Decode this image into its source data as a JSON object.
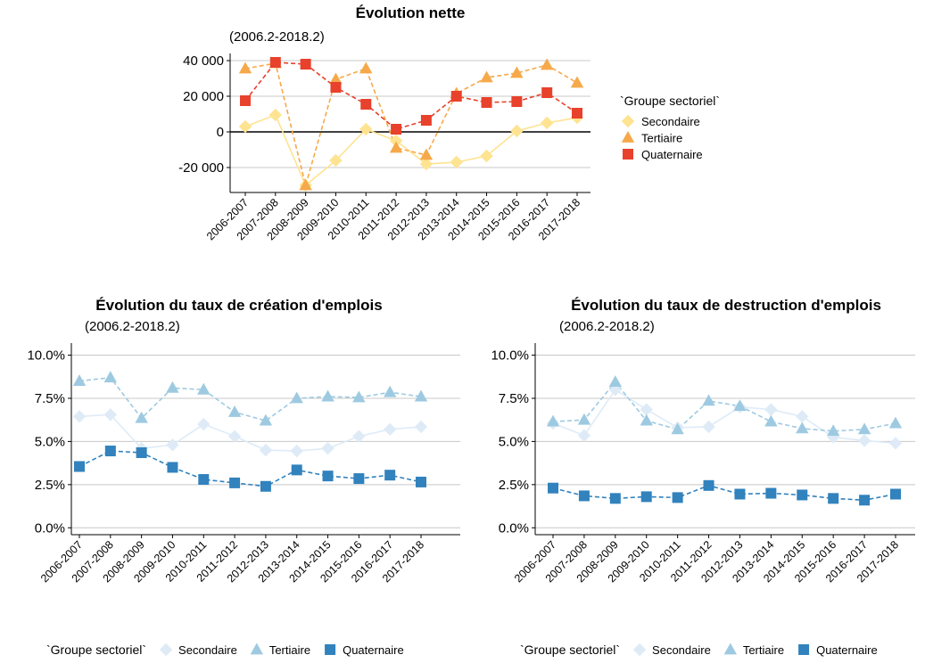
{
  "chart_data": [
    {
      "type": "line",
      "title": "Évolution nette",
      "subtitle": "(2006.2-2018.2)",
      "categories": [
        "2006-2007",
        "2007-2008",
        "2008-2009",
        "2009-2010",
        "2010-2011",
        "2011-2012",
        "2012-2013",
        "2013-2014",
        "2014-2015",
        "2015-2016",
        "2016-2017",
        "2017-2018"
      ],
      "series": [
        {
          "name": "Secondaire",
          "color": "#fee391",
          "marker": "diamond",
          "linestyle": "solid",
          "values": [
            3000,
            9500,
            -30000,
            -16000,
            1500,
            -5000,
            -18000,
            -17000,
            -13500,
            500,
            5000,
            8000
          ]
        },
        {
          "name": "Tertiaire",
          "color": "#f6a94a",
          "marker": "triangle",
          "linestyle": "dashed",
          "values": [
            35500,
            38500,
            -30000,
            29500,
            35500,
            -9000,
            -13000,
            21500,
            30500,
            33000,
            37500,
            27500
          ]
        },
        {
          "name": "Quaternaire",
          "color": "#e8412c",
          "marker": "square",
          "linestyle": "dashed",
          "values": [
            17500,
            39000,
            38000,
            25000,
            15500,
            1500,
            6500,
            20000,
            16500,
            17000,
            22000,
            10500
          ]
        }
      ],
      "ylim": [
        -34000,
        44000
      ],
      "yticks": [
        {
          "value": -20000,
          "label": "-20 000"
        },
        0,
        {
          "value": 20000,
          "label": "20 000"
        },
        {
          "value": 40000,
          "label": "40 000"
        }
      ],
      "grid": true,
      "zero_line": true,
      "legend_title": "`Groupe sectoriel`",
      "legend": "right"
    },
    {
      "type": "line",
      "title": "Évolution du taux de création d'emplois",
      "subtitle": "(2006.2-2018.2)",
      "categories": [
        "2006-2007",
        "2007-2008",
        "2008-2009",
        "2009-2010",
        "2010-2011",
        "2011-2012",
        "2012-2013",
        "2013-2014",
        "2014-2015",
        "2015-2016",
        "2016-2017",
        "2017-2018"
      ],
      "series": [
        {
          "name": "Secondaire",
          "color": "#deebf7",
          "marker": "diamond",
          "linestyle": "solid",
          "values": [
            6.45,
            6.55,
            4.6,
            4.8,
            6.0,
            5.3,
            4.5,
            4.45,
            4.6,
            5.3,
            5.7,
            5.85
          ]
        },
        {
          "name": "Tertiaire",
          "color": "#9ecae1",
          "marker": "triangle",
          "linestyle": "dashed",
          "values": [
            8.5,
            8.7,
            6.35,
            8.1,
            8.0,
            6.7,
            6.2,
            7.5,
            7.6,
            7.55,
            7.85,
            7.6
          ]
        },
        {
          "name": "Quaternaire",
          "color": "#3182bd",
          "marker": "square",
          "linestyle": "dashed",
          "values": [
            3.55,
            4.45,
            4.35,
            3.5,
            2.8,
            2.6,
            2.4,
            3.35,
            3.0,
            2.85,
            3.05,
            2.65
          ]
        }
      ],
      "ylim": [
        -0.4,
        10.7
      ],
      "yticks": [
        {
          "value": 0,
          "label": "0.0%"
        },
        {
          "value": 2.5,
          "label": "2.5%"
        },
        {
          "value": 5,
          "label": "5.0%"
        },
        {
          "value": 7.5,
          "label": "7.5%"
        },
        {
          "value": 10,
          "label": "10.0%"
        }
      ],
      "grid": true,
      "zero_line": false,
      "legend_title": "`Groupe sectoriel`",
      "legend": "bottom"
    },
    {
      "type": "line",
      "title": "Évolution du taux de destruction d'emplois",
      "subtitle": "(2006.2-2018.2)",
      "categories": [
        "2006-2007",
        "2007-2008",
        "2008-2009",
        "2009-2010",
        "2010-2011",
        "2011-2012",
        "2012-2013",
        "2013-2014",
        "2014-2015",
        "2015-2016",
        "2016-2017",
        "2017-2018"
      ],
      "series": [
        {
          "name": "Secondaire",
          "color": "#deebf7",
          "marker": "diamond",
          "linestyle": "solid",
          "values": [
            6.05,
            5.35,
            8.0,
            6.85,
            5.8,
            5.85,
            7.0,
            6.85,
            6.45,
            5.25,
            5.05,
            4.9
          ]
        },
        {
          "name": "Tertiaire",
          "color": "#9ecae1",
          "marker": "triangle",
          "linestyle": "dashed",
          "values": [
            6.15,
            6.25,
            8.45,
            6.2,
            5.7,
            7.35,
            7.05,
            6.15,
            5.75,
            5.6,
            5.7,
            6.05
          ]
        },
        {
          "name": "Quaternaire",
          "color": "#3182bd",
          "marker": "square",
          "linestyle": "dashed",
          "values": [
            2.3,
            1.85,
            1.7,
            1.8,
            1.75,
            2.45,
            1.95,
            2.0,
            1.9,
            1.7,
            1.6,
            1.95
          ]
        }
      ],
      "ylim": [
        -0.4,
        10.7
      ],
      "yticks": [
        {
          "value": 0,
          "label": "0.0%"
        },
        {
          "value": 2.5,
          "label": "2.5%"
        },
        {
          "value": 5,
          "label": "5.0%"
        },
        {
          "value": 7.5,
          "label": "7.5%"
        },
        {
          "value": 10,
          "label": "10.0%"
        }
      ],
      "grid": true,
      "zero_line": false,
      "legend_title": "`Groupe sectoriel`",
      "legend": "bottom"
    }
  ]
}
